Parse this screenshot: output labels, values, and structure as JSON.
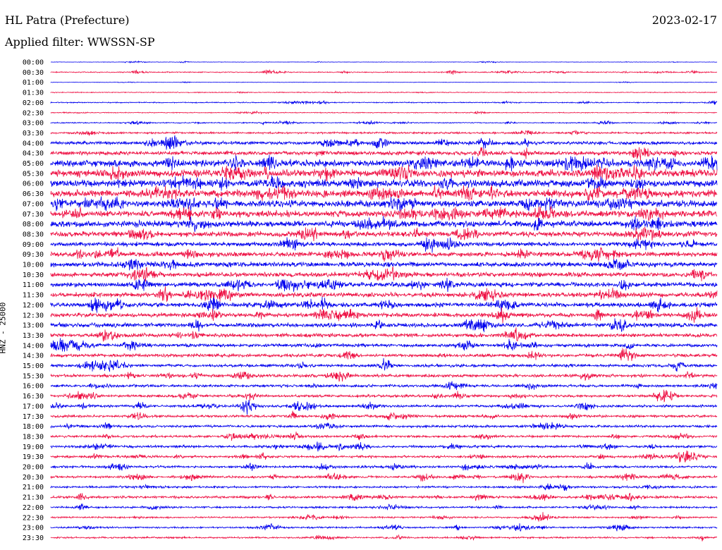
{
  "header": {
    "station": "HL Patra (Prefecture)",
    "date": "2023-02-17",
    "filter_label": "Applied filter:",
    "filter_value": "WWSSN-SP"
  },
  "colors": {
    "even_trace": "#0000ee",
    "odd_trace": "#ee1144",
    "background": "#ffffff",
    "text": "#000000"
  },
  "chart_data": {
    "type": "line",
    "title": "HL Patra (Prefecture)",
    "ylabel": "HNZ - 25000",
    "xlabel": "",
    "grid": false,
    "legend": "none",
    "categories": [
      "00:00",
      "00:30",
      "01:00",
      "01:30",
      "02:00",
      "02:30",
      "03:00",
      "03:30",
      "04:00",
      "04:30",
      "05:00",
      "05:30",
      "06:00",
      "06:30",
      "07:00",
      "07:30",
      "08:00",
      "08:30",
      "09:00",
      "09:30",
      "10:00",
      "10:30",
      "11:00",
      "11:30",
      "12:00",
      "12:30",
      "13:00",
      "13:30",
      "14:00",
      "14:30",
      "15:00",
      "15:30",
      "16:00",
      "16:30",
      "17:00",
      "17:30",
      "18:00",
      "18:30",
      "19:00",
      "19:30",
      "20:00",
      "20:30",
      "21:00",
      "21:30",
      "22:00",
      "22:30",
      "23:00",
      "23:30"
    ],
    "series": [
      {
        "values": [
          0.2,
          0.5,
          0.2,
          0.4,
          0.5,
          0.4,
          0.5,
          0.9,
          1.6,
          1.9,
          3.4,
          3.5,
          3.5,
          3.5,
          3.3,
          3.2,
          3.0,
          2.5,
          2.0,
          2.4,
          2.3,
          2.2,
          2.2,
          2.2,
          2.2,
          2.0,
          2.0,
          1.8,
          1.6,
          1.6,
          1.4,
          1.4,
          1.3,
          1.3,
          1.2,
          1.2,
          1.2,
          1.1,
          1.2,
          1.1,
          1.1,
          1.1,
          1.0,
          1.1,
          0.9,
          0.8,
          0.8,
          0.8
        ]
      },
      {
        "values": [
          0,
          1,
          0,
          1,
          0,
          1,
          0,
          1,
          0,
          1,
          0,
          1,
          0,
          1,
          0,
          1,
          0,
          1,
          0,
          1,
          0,
          1,
          0,
          1,
          0,
          1,
          0,
          1,
          0,
          1,
          0,
          1,
          0,
          1,
          0,
          1,
          0,
          1,
          0,
          1,
          0,
          1,
          0,
          1,
          0,
          1,
          0,
          1
        ]
      }
    ]
  }
}
